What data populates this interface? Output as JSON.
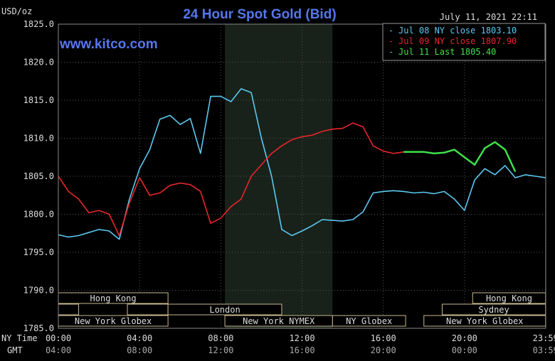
{
  "chart_data": {
    "type": "line",
    "title": "24 Hour Spot Gold (Bid)",
    "ylabel": "USD/oz",
    "timestamp": "July 11, 2021 22:11",
    "watermark": "www.kitco.com",
    "ylim": [
      1785.0,
      1825.0
    ],
    "y_ticks": [
      "1825.0",
      "1820.0",
      "1815.0",
      "1810.0",
      "1805.0",
      "1800.0",
      "1795.0",
      "1790.0",
      "1785.0"
    ],
    "x_label_ny": "NY Time",
    "x_label_gmt": "GMT",
    "x_ticks_ny": [
      "00:00",
      "04:00",
      "08:00",
      "12:00",
      "16:00",
      "20:00",
      "23:59"
    ],
    "x_ticks_gmt": [
      "04:00",
      "08:00",
      "12:00",
      "16:00",
      "20:00",
      "00:00",
      "03:59"
    ],
    "legend": [
      {
        "label": "Jul 08 NY close 1803.10",
        "color": "#5bc8f0"
      },
      {
        "label": "Jul 09 NY close 1807.90",
        "color": "#e8252a"
      },
      {
        "label": "Jul 11 Last 1805.40",
        "color": "#3ee04a"
      }
    ],
    "sessions": [
      {
        "label": "Hong Kong",
        "start": 0,
        "end": 5.4,
        "row": 0
      },
      {
        "label": "",
        "start": 0,
        "end": 1,
        "row": 1
      },
      {
        "label": "",
        "start": 3.4,
        "end": 5.4,
        "row": 1
      },
      {
        "label": "London",
        "start": 5.4,
        "end": 11,
        "row": 1
      },
      {
        "label": "New York Globex",
        "start": 0,
        "end": 5.4,
        "row": 2
      },
      {
        "label": "New York NYMEX",
        "start": 8.2,
        "end": 13.5,
        "row": 2
      },
      {
        "label": "NY Globex",
        "start": 13.5,
        "end": 17.1,
        "row": 2
      },
      {
        "label": "Hong Kong",
        "start": 20.4,
        "end": 23.99,
        "row": 0
      },
      {
        "label": "Sydney",
        "start": 18.9,
        "end": 23.99,
        "row": 1
      },
      {
        "label": "New York Globex",
        "start": 18,
        "end": 23.99,
        "row": 2
      }
    ],
    "series": [
      {
        "name": "Jul 08",
        "color": "#5bc8f0",
        "x": [
          0,
          0.5,
          1,
          1.5,
          2,
          2.5,
          3,
          3.5,
          4,
          4.5,
          5,
          5.5,
          6,
          6.5,
          7,
          7.5,
          8,
          8.5,
          9,
          9.5,
          10,
          10.5,
          11,
          11.5,
          12,
          12.5,
          13,
          13.5,
          14,
          14.5,
          15,
          15.5,
          16,
          16.5,
          17,
          17.5,
          18,
          18.5,
          19,
          19.5,
          20,
          20.5,
          21,
          21.5,
          22,
          22.5,
          23,
          23.5,
          23.99
        ],
        "y": [
          1797.3,
          1797.0,
          1797.2,
          1797.6,
          1798.0,
          1797.8,
          1796.7,
          1802.0,
          1806.0,
          1808.5,
          1812.5,
          1813.0,
          1811.8,
          1812.6,
          1808.0,
          1815.5,
          1815.5,
          1814.8,
          1816.5,
          1816.0,
          1810.0,
          1805.0,
          1798.0,
          1797.2,
          1797.8,
          1798.5,
          1799.3,
          1799.2,
          1799.1,
          1799.3,
          1800.3,
          1802.8,
          1803.0,
          1803.1,
          1803.0,
          1802.8,
          1802.9,
          1802.7,
          1803.0,
          1802.0,
          1800.5,
          1804.5,
          1806.0,
          1805.2,
          1806.4,
          1804.8,
          1805.2,
          1805.0,
          1804.8
        ]
      },
      {
        "name": "Jul 09",
        "color": "#e8252a",
        "x": [
          0,
          0.5,
          1,
          1.5,
          2,
          2.5,
          3,
          3.5,
          4,
          4.5,
          5,
          5.5,
          6,
          6.5,
          7,
          7.5,
          8,
          8.5,
          9,
          9.5,
          10,
          10.5,
          11,
          11.5,
          12,
          12.5,
          13,
          13.5,
          14,
          14.5,
          15,
          15.5,
          16,
          16.5,
          17
        ],
        "y": [
          1805.0,
          1803.0,
          1802.0,
          1800.2,
          1800.5,
          1800.0,
          1797.2,
          1801.5,
          1804.8,
          1802.5,
          1802.8,
          1803.8,
          1804.1,
          1803.9,
          1803.0,
          1798.8,
          1799.5,
          1801.0,
          1802.0,
          1805.0,
          1806.5,
          1808.0,
          1809.0,
          1809.8,
          1810.2,
          1810.4,
          1810.9,
          1811.2,
          1811.3,
          1812.0,
          1811.5,
          1809.0,
          1808.3,
          1808.0,
          1808.2
        ]
      },
      {
        "name": "Jul 11",
        "color": "#3ee04a",
        "x": [
          17,
          17.5,
          18,
          18.5,
          19,
          19.5,
          20,
          20.5,
          21,
          21.5,
          22,
          22.5
        ],
        "y": [
          1808.2,
          1808.2,
          1808.2,
          1808.0,
          1808.1,
          1808.5,
          1807.5,
          1806.5,
          1808.7,
          1809.5,
          1808.5,
          1805.6
        ]
      }
    ]
  }
}
